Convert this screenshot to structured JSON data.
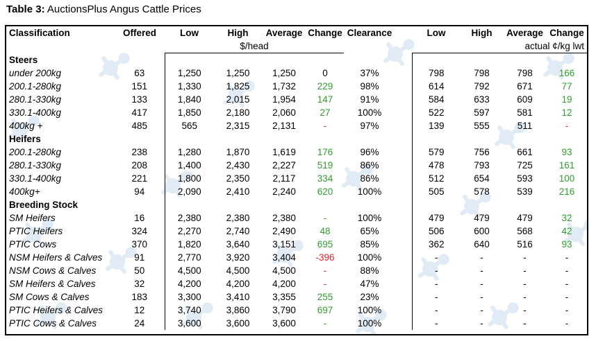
{
  "caption": {
    "prefix": "Table 3:",
    "title": " AuctionsPlus Angus Cattle Prices"
  },
  "headers": {
    "classification": "Classification",
    "offered": "Offered",
    "low": "Low",
    "high": "High",
    "average": "Average",
    "change": "Change",
    "clearance": "Clearance",
    "low2": "Low",
    "high2": "High",
    "average2": "Average",
    "change2": "Change",
    "unit_head": "$/head",
    "unit_kg": "actual ¢/kg lwt"
  },
  "sections": [
    {
      "title": "Steers",
      "rows": [
        {
          "label": "under 200kg",
          "offered": "63",
          "low": "1,250",
          "high": "1,250",
          "avg": "1,250",
          "change": "0",
          "change_color": "black",
          "clearance": "37%",
          "kg_low": "798",
          "kg_high": "798",
          "kg_avg": "798",
          "kg_change": "166",
          "kg_change_color": "green"
        },
        {
          "label": "200.1-280kg",
          "offered": "151",
          "low": "1,330",
          "high": "1,825",
          "avg": "1,732",
          "change": "229",
          "change_color": "green",
          "clearance": "98%",
          "kg_low": "614",
          "kg_high": "792",
          "kg_avg": "671",
          "kg_change": "77",
          "kg_change_color": "green"
        },
        {
          "label": "280.1-330kg",
          "offered": "133",
          "low": "1,840",
          "high": "2,015",
          "avg": "1,954",
          "change": "147",
          "change_color": "green",
          "clearance": "91%",
          "kg_low": "584",
          "kg_high": "633",
          "kg_avg": "609",
          "kg_change": "19",
          "kg_change_color": "green"
        },
        {
          "label": "330.1-400kg",
          "offered": "417",
          "low": "1,850",
          "high": "2,180",
          "avg": "2,060",
          "change": "27",
          "change_color": "green",
          "clearance": "100%",
          "kg_low": "522",
          "kg_high": "597",
          "kg_avg": "581",
          "kg_change": "12",
          "kg_change_color": "green"
        },
        {
          "label": "400kg +",
          "offered": "485",
          "low": "565",
          "high": "2,315",
          "avg": "2,131",
          "change": "-",
          "change_color": "red",
          "clearance": "97%",
          "kg_low": "139",
          "kg_high": "555",
          "kg_avg": "511",
          "kg_change": "-",
          "kg_change_color": "red"
        }
      ]
    },
    {
      "title": "Heifers",
      "rows": [
        {
          "label": "200.1-280kg",
          "offered": "238",
          "low": "1,280",
          "high": "1,870",
          "avg": "1,619",
          "change": "176",
          "change_color": "green",
          "clearance": "96%",
          "kg_low": "579",
          "kg_high": "756",
          "kg_avg": "661",
          "kg_change": "93",
          "kg_change_color": "green"
        },
        {
          "label": "280.1-330kg",
          "offered": "208",
          "low": "1,400",
          "high": "2,430",
          "avg": "2,227",
          "change": "519",
          "change_color": "green",
          "clearance": "86%",
          "kg_low": "478",
          "kg_high": "793",
          "kg_avg": "725",
          "kg_change": "161",
          "kg_change_color": "green"
        },
        {
          "label": "330.1-400kg",
          "offered": "221",
          "low": "1,800",
          "high": "2,350",
          "avg": "2,117",
          "change": "334",
          "change_color": "green",
          "clearance": "86%",
          "kg_low": "512",
          "kg_high": "654",
          "kg_avg": "593",
          "kg_change": "100",
          "kg_change_color": "green"
        },
        {
          "label": "400kg+",
          "offered": "94",
          "low": "2,090",
          "high": "2,410",
          "avg": "2,240",
          "change": "620",
          "change_color": "green",
          "clearance": "100%",
          "kg_low": "505",
          "kg_high": "578",
          "kg_avg": "539",
          "kg_change": "216",
          "kg_change_color": "green"
        }
      ]
    },
    {
      "title": "Breeding Stock",
      "rows": [
        {
          "label": "SM Heifers",
          "offered": "16",
          "low": "2,380",
          "high": "2,380",
          "avg": "2,380",
          "change": "-",
          "change_color": "green",
          "clearance": "100%",
          "kg_low": "479",
          "kg_high": "479",
          "kg_avg": "479",
          "kg_change": "32",
          "kg_change_color": "green"
        },
        {
          "label": "PTIC Heifers",
          "offered": "324",
          "low": "2,270",
          "high": "2,740",
          "avg": "2,490",
          "change": "48",
          "change_color": "green",
          "clearance": "65%",
          "kg_low": "506",
          "kg_high": "600",
          "kg_avg": "568",
          "kg_change": "42",
          "kg_change_color": "green"
        },
        {
          "label": "PTIC Cows",
          "offered": "370",
          "low": "1,820",
          "high": "3,640",
          "avg": "3,151",
          "change": "695",
          "change_color": "green",
          "clearance": "85%",
          "kg_low": "362",
          "kg_high": "640",
          "kg_avg": "516",
          "kg_change": "93",
          "kg_change_color": "green"
        },
        {
          "label": "NSM Heifers & Calves",
          "offered": "91",
          "low": "2,770",
          "high": "3,920",
          "avg": "3,404",
          "change": "-396",
          "change_color": "red",
          "clearance": "100%",
          "kg_low": "-",
          "kg_high": "-",
          "kg_avg": "-",
          "kg_change": "-",
          "kg_change_color": "black"
        },
        {
          "label": "NSM Cows & Calves",
          "offered": "50",
          "low": "4,500",
          "high": "4,500",
          "avg": "4,500",
          "change": "-",
          "change_color": "red",
          "clearance": "88%",
          "kg_low": "-",
          "kg_high": "-",
          "kg_avg": "-",
          "kg_change": "-",
          "kg_change_color": "black"
        },
        {
          "label": "SM Heifers & Calves",
          "offered": "32",
          "low": "4,200",
          "high": "4,200",
          "avg": "4,200",
          "change": "-",
          "change_color": "red",
          "clearance": "47%",
          "kg_low": "-",
          "kg_high": "-",
          "kg_avg": "-",
          "kg_change": "-",
          "kg_change_color": "black"
        },
        {
          "label": "SM Cows & Calves",
          "offered": "183",
          "low": "3,300",
          "high": "3,410",
          "avg": "3,355",
          "change": "255",
          "change_color": "green",
          "clearance": "23%",
          "kg_low": "-",
          "kg_high": "-",
          "kg_avg": "-",
          "kg_change": "-",
          "kg_change_color": "black"
        },
        {
          "label": "PTIC Heifers & Calves",
          "offered": "12",
          "low": "3,740",
          "high": "3,860",
          "avg": "3,790",
          "change": "697",
          "change_color": "green",
          "clearance": "100%",
          "kg_low": "-",
          "kg_high": "-",
          "kg_avg": "-",
          "kg_change": "-",
          "kg_change_color": "black"
        },
        {
          "label": "PTIC Cows & Calves",
          "offered": "24",
          "low": "3,600",
          "high": "3,600",
          "avg": "3,600",
          "change": "-",
          "change_color": "green",
          "clearance": "100%",
          "kg_low": "-",
          "kg_high": "-",
          "kg_avg": "-",
          "kg_change": "-",
          "kg_change_color": "black"
        }
      ]
    }
  ],
  "colors": {
    "green": "#2f9e2f",
    "red": "#e8202a",
    "watermark": "#c9dcef"
  },
  "watermark_icon": "auctionsplus-logo-icon"
}
